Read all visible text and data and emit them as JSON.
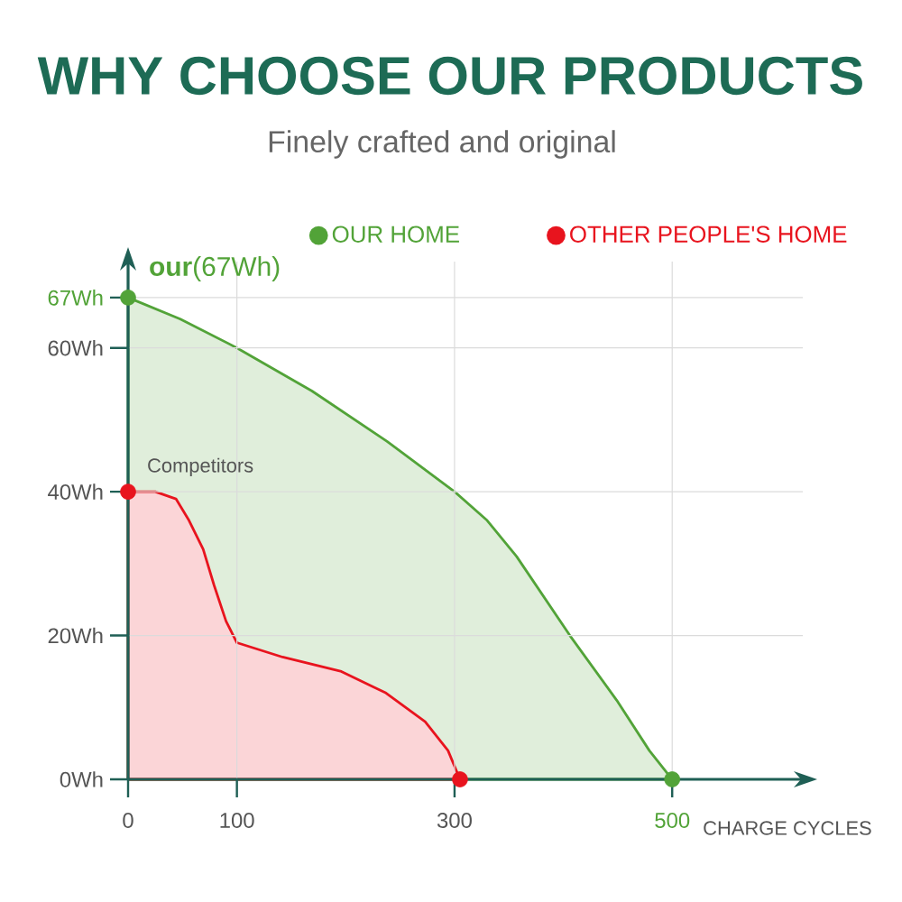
{
  "chart_data": {
    "type": "area",
    "title": "WHY CHOOSE OUR PRODUCTS",
    "subtitle": "Finely crafted and original",
    "xlabel": "CHARGE CYCLES",
    "ylabel": "**our**(67Wh)",
    "series": [
      {
        "name": "OUR HOME",
        "color": "#52a338",
        "x": [
          0,
          48,
          100,
          169,
          238,
          300,
          330,
          357,
          406,
          449,
          479,
          500
        ],
        "values": [
          67,
          64,
          60,
          54,
          47,
          40,
          36,
          31,
          20,
          11,
          4,
          0
        ]
      },
      {
        "name": "OTHER PEOPLE'S HOME",
        "color": "#e8141e",
        "x": [
          0,
          25,
          44,
          56,
          69,
          79,
          90,
          100,
          142,
          196,
          237,
          273,
          294,
          305
        ],
        "values": [
          40,
          40,
          39,
          36,
          32,
          27,
          22,
          19,
          17,
          15,
          12,
          8,
          4,
          0
        ]
      },
      {
        "type": "scatter",
        "marker": "circle",
        "x": [
          0,
          500,
          0,
          305
        ],
        "values": [
          67,
          0,
          40,
          0
        ],
        "colors": [
          "#52a338",
          "#52a338",
          "#e8141e",
          "#e8141e"
        ]
      }
    ],
    "xlim": [
      0,
      620
    ],
    "ylim": [
      0,
      72
    ],
    "xticks": [
      0,
      100,
      300,
      500
    ],
    "yticks": [
      {
        "value": 0,
        "label": "0Wh"
      },
      {
        "value": 20,
        "label": "20Wh"
      },
      {
        "value": 40,
        "label": "40Wh"
      },
      {
        "value": 60,
        "label": "60Wh"
      },
      {
        "value": 67,
        "label": "67Wh"
      }
    ],
    "annotations": [
      {
        "text": "Competitors",
        "x": 0,
        "y": 40
      }
    ],
    "grid": true,
    "legend": "top"
  }
}
